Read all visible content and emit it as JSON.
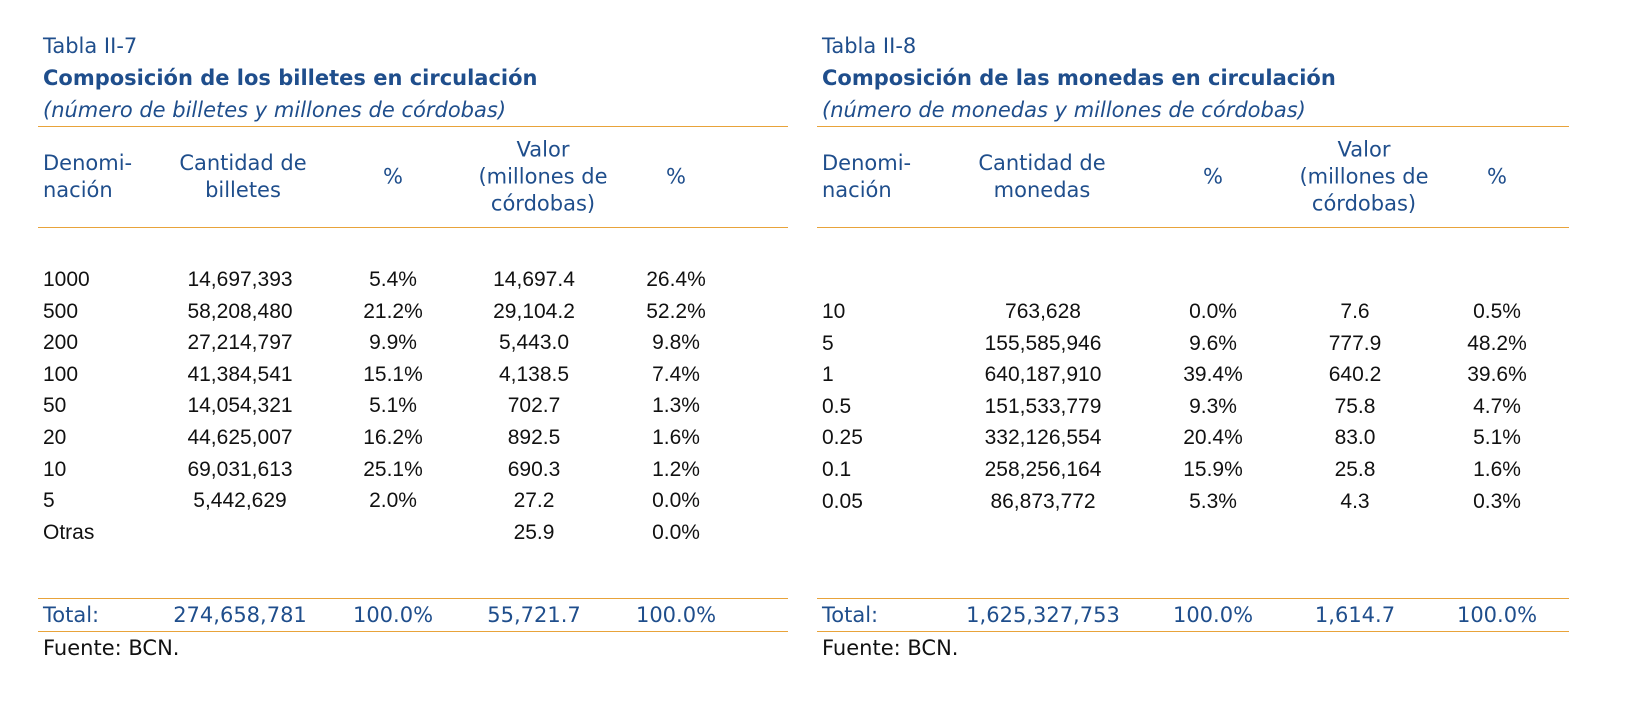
{
  "tables": [
    {
      "number": "Tabla II-7",
      "title": "Composición de los billetes en circulación",
      "subtitle": "(número de billetes y millones de córdobas)",
      "headers": {
        "col1_line1": "Denomi-",
        "col1_line2": "nación",
        "col2_line1": "Cantidad de",
        "col2_line2": "billetes",
        "col3": "%",
        "col4_line1": "Valor",
        "col4_line2": "(millones de",
        "col4_line3": "córdobas)",
        "col5": "%"
      },
      "rows": [
        {
          "denominacion": "1000",
          "cantidad": "14,697,393",
          "pct_cantidad": "5.4%",
          "valor": "14,697.4",
          "pct_valor": "26.4%"
        },
        {
          "denominacion": "500",
          "cantidad": "58,208,480",
          "pct_cantidad": "21.2%",
          "valor": "29,104.2",
          "pct_valor": "52.2%"
        },
        {
          "denominacion": "200",
          "cantidad": "27,214,797",
          "pct_cantidad": "9.9%",
          "valor": "5,443.0",
          "pct_valor": "9.8%"
        },
        {
          "denominacion": "100",
          "cantidad": "41,384,541",
          "pct_cantidad": "15.1%",
          "valor": "4,138.5",
          "pct_valor": "7.4%"
        },
        {
          "denominacion": "50",
          "cantidad": "14,054,321",
          "pct_cantidad": "5.1%",
          "valor": "702.7",
          "pct_valor": "1.3%"
        },
        {
          "denominacion": "20",
          "cantidad": "44,625,007",
          "pct_cantidad": "16.2%",
          "valor": "892.5",
          "pct_valor": "1.6%"
        },
        {
          "denominacion": "10",
          "cantidad": "69,031,613",
          "pct_cantidad": "25.1%",
          "valor": "690.3",
          "pct_valor": "1.2%"
        },
        {
          "denominacion": "5",
          "cantidad": "5,442,629",
          "pct_cantidad": "2.0%",
          "valor": "27.2",
          "pct_valor": "0.0%"
        },
        {
          "denominacion": "Otras",
          "cantidad": "",
          "pct_cantidad": "",
          "valor": "25.9",
          "pct_valor": "0.0%"
        }
      ],
      "total": {
        "label": "Total:",
        "cantidad": "274,658,781",
        "pct_cantidad": "100.0%",
        "valor": "55,721.7",
        "pct_valor": "100.0%"
      },
      "source": "Fuente: BCN."
    },
    {
      "number": "Tabla II-8",
      "title": "Composición de las monedas en circulación",
      "subtitle": "(número de monedas y millones de córdobas)",
      "headers": {
        "col1_line1": "Denomi-",
        "col1_line2": "nación",
        "col2_line1": "Cantidad de",
        "col2_line2": "monedas",
        "col3": "%",
        "col4_line1": "Valor",
        "col4_line2": "(millones de",
        "col4_line3": "córdobas)",
        "col5": "%"
      },
      "rows": [
        {
          "denominacion": "10",
          "cantidad": "763,628",
          "pct_cantidad": "0.0%",
          "valor": "7.6",
          "pct_valor": "0.5%"
        },
        {
          "denominacion": "5",
          "cantidad": "155,585,946",
          "pct_cantidad": "9.6%",
          "valor": "777.9",
          "pct_valor": "48.2%"
        },
        {
          "denominacion": "1",
          "cantidad": "640,187,910",
          "pct_cantidad": "39.4%",
          "valor": "640.2",
          "pct_valor": "39.6%"
        },
        {
          "denominacion": "0.5",
          "cantidad": "151,533,779",
          "pct_cantidad": "9.3%",
          "valor": "75.8",
          "pct_valor": "4.7%"
        },
        {
          "denominacion": "0.25",
          "cantidad": "332,126,554",
          "pct_cantidad": "20.4%",
          "valor": "83.0",
          "pct_valor": "5.1%"
        },
        {
          "denominacion": "0.1",
          "cantidad": "258,256,164",
          "pct_cantidad": "15.9%",
          "valor": "25.8",
          "pct_valor": "1.6%"
        },
        {
          "denominacion": "0.05",
          "cantidad": "86,873,772",
          "pct_cantidad": "5.3%",
          "valor": "4.3",
          "pct_valor": "0.3%"
        }
      ],
      "total": {
        "label": "Total:",
        "cantidad": "1,625,327,753",
        "pct_cantidad": "100.0%",
        "valor": "1,614.7",
        "pct_valor": "100.0%"
      },
      "source": "Fuente: BCN."
    }
  ]
}
